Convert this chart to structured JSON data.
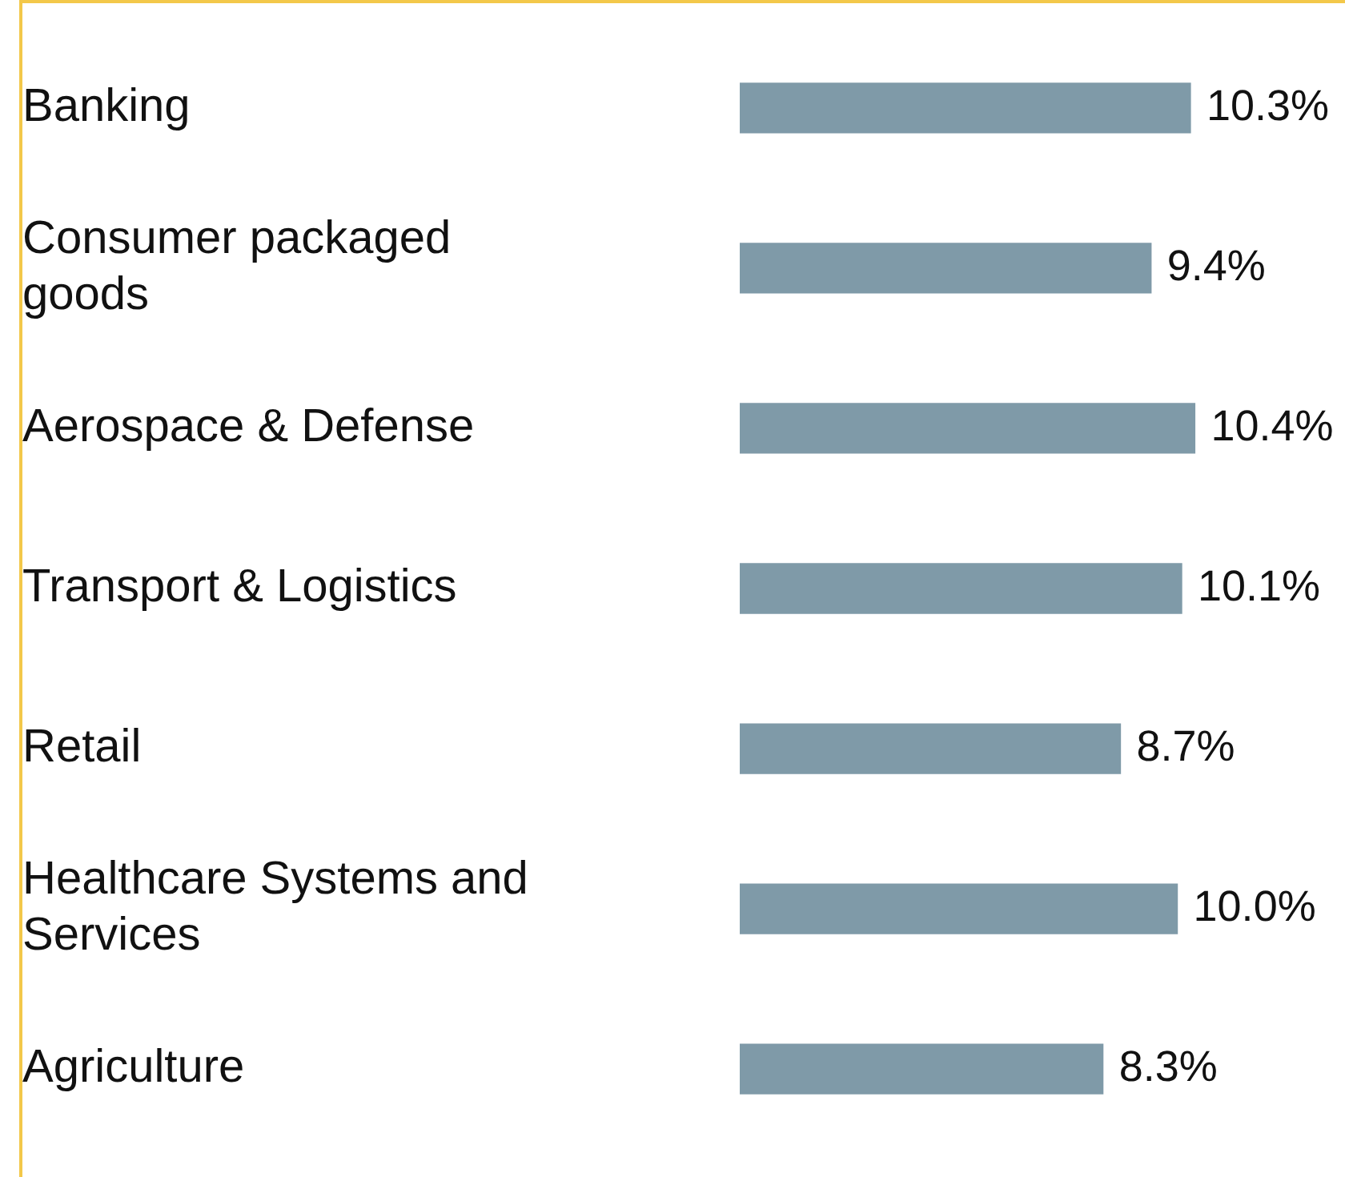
{
  "chart_data": {
    "type": "bar",
    "orientation": "horizontal",
    "categories": [
      "Banking",
      "Consumer packaged goods",
      "Aerospace & Defense",
      "Transport & Logistics",
      "Retail",
      "Healthcare Systems and Services",
      "Agriculture"
    ],
    "values": [
      10.3,
      9.4,
      10.4,
      10.1,
      8.7,
      10.0,
      8.3
    ],
    "value_labels": [
      "10.3%",
      "9.4%",
      "10.4%",
      "10.1%",
      "8.7%",
      "10.0%",
      "8.3%"
    ],
    "color": "#7f9aa8",
    "grid": false,
    "legend": false,
    "tick_labels": "y"
  }
}
